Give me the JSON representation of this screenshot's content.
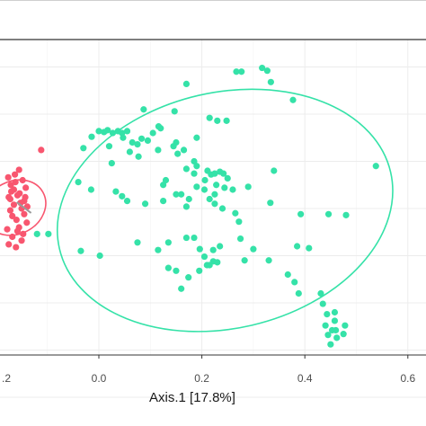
{
  "chart_data": {
    "type": "scatter",
    "xlabel": "Axis.1   [17.8%]",
    "xlim": [
      -0.18,
      0.62
    ],
    "ylim": [
      -0.26,
      0.2
    ],
    "grid": true,
    "x_ticks": [
      0.0,
      0.2,
      0.4,
      0.6
    ],
    "x_tick_labels": [
      "0.0",
      "0.2",
      "0.4",
      "0.6"
    ],
    "x_edge_tick_label": ".2",
    "colors": {
      "group_a": "#f8566f",
      "group_b": "#35e2a8",
      "panel_border": "#333333",
      "grid": "#ececec"
    },
    "series": [
      {
        "color": "#f8566f",
        "points": [
          [
            -0.155,
            0.041
          ],
          [
            -0.162,
            0.028
          ],
          [
            -0.17,
            0.018
          ],
          [
            -0.175,
            0.012
          ],
          [
            -0.158,
            0.014
          ],
          [
            -0.165,
            0.004
          ],
          [
            -0.15,
            0.0
          ],
          [
            -0.145,
            -0.006
          ],
          [
            -0.172,
            -0.002
          ],
          [
            -0.16,
            -0.012
          ],
          [
            -0.155,
            -0.02
          ],
          [
            -0.178,
            -0.022
          ],
          [
            -0.168,
            -0.03
          ],
          [
            -0.15,
            -0.034
          ],
          [
            -0.175,
            -0.038
          ],
          [
            -0.142,
            0.022
          ],
          [
            -0.163,
            0.036
          ],
          [
            -0.148,
            0.03
          ],
          [
            -0.171,
            0.025
          ],
          [
            -0.158,
            -0.024
          ],
          [
            -0.168,
            -0.008
          ],
          [
            -0.145,
            0.008
          ],
          [
            -0.14,
            -0.015
          ],
          [
            -0.152,
            0.006
          ],
          [
            -0.176,
            0.033
          ],
          [
            -0.161,
            -0.041
          ],
          [
            -0.165,
            0.02
          ],
          [
            -0.147,
            -0.027
          ],
          [
            -0.172,
            0.01
          ],
          [
            -0.154,
            0.016
          ],
          [
            -0.143,
            0.012
          ],
          [
            -0.139,
            0.002
          ],
          [
            -0.112,
            0.062
          ]
        ],
        "ellipse": {
          "cx": -0.163,
          "cy": 0.001,
          "rx": 0.062,
          "ry": 0.028,
          "angle_deg": -28
        }
      },
      {
        "color": "#35e2a8",
        "points": [
          [
            0.267,
            0.145
          ],
          [
            0.277,
            0.145
          ],
          [
            0.317,
            0.149
          ],
          [
            0.327,
            0.146
          ],
          [
            0.334,
            0.134
          ],
          [
            0.17,
            0.132
          ],
          [
            0.377,
            0.115
          ],
          [
            0.087,
            0.105
          ],
          [
            0.147,
            0.103
          ],
          [
            0.215,
            0.096
          ],
          [
            0.23,
            0.093
          ],
          [
            0.248,
            0.093
          ],
          [
            0.116,
            0.087
          ],
          [
            0.19,
            0.075
          ],
          [
            0.15,
            0.07
          ],
          [
            0.12,
            0.085
          ],
          [
            -0.014,
            0.076
          ],
          [
            0.0,
            0.082
          ],
          [
            0.01,
            0.081
          ],
          [
            0.017,
            0.083
          ],
          [
            0.027,
            0.08
          ],
          [
            0.037,
            0.082
          ],
          [
            0.045,
            0.08
          ],
          [
            0.055,
            0.082
          ],
          [
            0.047,
            0.075
          ],
          [
            0.065,
            0.07
          ],
          [
            0.075,
            0.068
          ],
          [
            0.083,
            0.074
          ],
          [
            0.095,
            0.072
          ],
          [
            0.105,
            0.08
          ],
          [
            0.115,
            0.062
          ],
          [
            0.145,
            0.066
          ],
          [
            0.165,
            0.062
          ],
          [
            0.153,
            0.058
          ],
          [
            0.02,
            0.066
          ],
          [
            0.06,
            0.06
          ],
          [
            0.077,
            0.055
          ],
          [
            -0.03,
            0.064
          ],
          [
            0.025,
            0.048
          ],
          [
            0.185,
            0.05
          ],
          [
            0.17,
            0.042
          ],
          [
            0.185,
            0.037
          ],
          [
            0.19,
            0.045
          ],
          [
            0.206,
            0.03
          ],
          [
            0.211,
            0.04
          ],
          [
            0.218,
            0.036
          ],
          [
            0.225,
            0.037
          ],
          [
            0.235,
            0.039
          ],
          [
            0.242,
            0.037
          ],
          [
            0.25,
            0.032
          ],
          [
            0.19,
            0.023
          ],
          [
            0.205,
            0.02
          ],
          [
            0.228,
            0.025
          ],
          [
            0.244,
            0.022
          ],
          [
            0.26,
            0.02
          ],
          [
            0.125,
            0.025
          ],
          [
            0.13,
            0.03
          ],
          [
            0.16,
            0.015
          ],
          [
            0.175,
            0.01
          ],
          [
            0.225,
            0.015
          ],
          [
            0.29,
            0.023
          ],
          [
            0.34,
            0.04
          ],
          [
            -0.04,
            0.028
          ],
          [
            -0.015,
            0.02
          ],
          [
            0.033,
            0.018
          ],
          [
            0.045,
            0.013
          ],
          [
            0.055,
            0.008
          ],
          [
            0.09,
            0.005
          ],
          [
            0.125,
            0.008
          ],
          [
            0.15,
            0.015
          ],
          [
            0.17,
            0.002
          ],
          [
            0.215,
            0.01
          ],
          [
            0.225,
            0.005
          ],
          [
            0.24,
            0.0
          ],
          [
            0.265,
            -0.005
          ],
          [
            0.272,
            -0.014
          ],
          [
            0.333,
            0.006
          ],
          [
            0.392,
            -0.006
          ],
          [
            0.446,
            -0.006
          ],
          [
            0.48,
            -0.007
          ],
          [
            0.538,
            0.045
          ],
          [
            -0.12,
            -0.027
          ],
          [
            -0.098,
            -0.027
          ],
          [
            0.002,
            -0.05
          ],
          [
            -0.035,
            -0.045
          ],
          [
            0.075,
            -0.036
          ],
          [
            0.115,
            -0.044
          ],
          [
            0.135,
            -0.036
          ],
          [
            0.17,
            -0.031
          ],
          [
            0.185,
            -0.031
          ],
          [
            0.196,
            -0.043
          ],
          [
            0.205,
            -0.051
          ],
          [
            0.222,
            -0.044
          ],
          [
            0.235,
            -0.04
          ],
          [
            0.195,
            -0.066
          ],
          [
            0.215,
            -0.06
          ],
          [
            0.222,
            -0.056
          ],
          [
            0.21,
            -0.06
          ],
          [
            0.23,
            -0.057
          ],
          [
            0.15,
            -0.066
          ],
          [
            0.135,
            -0.063
          ],
          [
            0.16,
            -0.085
          ],
          [
            0.174,
            -0.073
          ],
          [
            0.275,
            -0.032
          ],
          [
            0.3,
            -0.043
          ],
          [
            0.33,
            -0.055
          ],
          [
            0.385,
            -0.04
          ],
          [
            0.408,
            -0.042
          ],
          [
            0.283,
            -0.055
          ],
          [
            0.367,
            -0.07
          ],
          [
            0.38,
            -0.078
          ],
          [
            0.388,
            -0.09
          ],
          [
            0.431,
            -0.09
          ],
          [
            0.435,
            -0.101
          ],
          [
            0.443,
            -0.112
          ],
          [
            0.458,
            -0.11
          ],
          [
            0.458,
            -0.119
          ],
          [
            0.44,
            -0.124
          ],
          [
            0.453,
            -0.129
          ],
          [
            0.46,
            -0.129
          ],
          [
            0.478,
            -0.124
          ],
          [
            0.445,
            -0.134
          ],
          [
            0.462,
            -0.137
          ],
          [
            0.45,
            -0.144
          ],
          [
            0.475,
            -0.133
          ]
        ],
        "ellipse": {
          "cx": 0.245,
          "cy": -0.002,
          "rx": 0.33,
          "ry": 0.125,
          "angle_deg": -13
        }
      }
    ]
  }
}
